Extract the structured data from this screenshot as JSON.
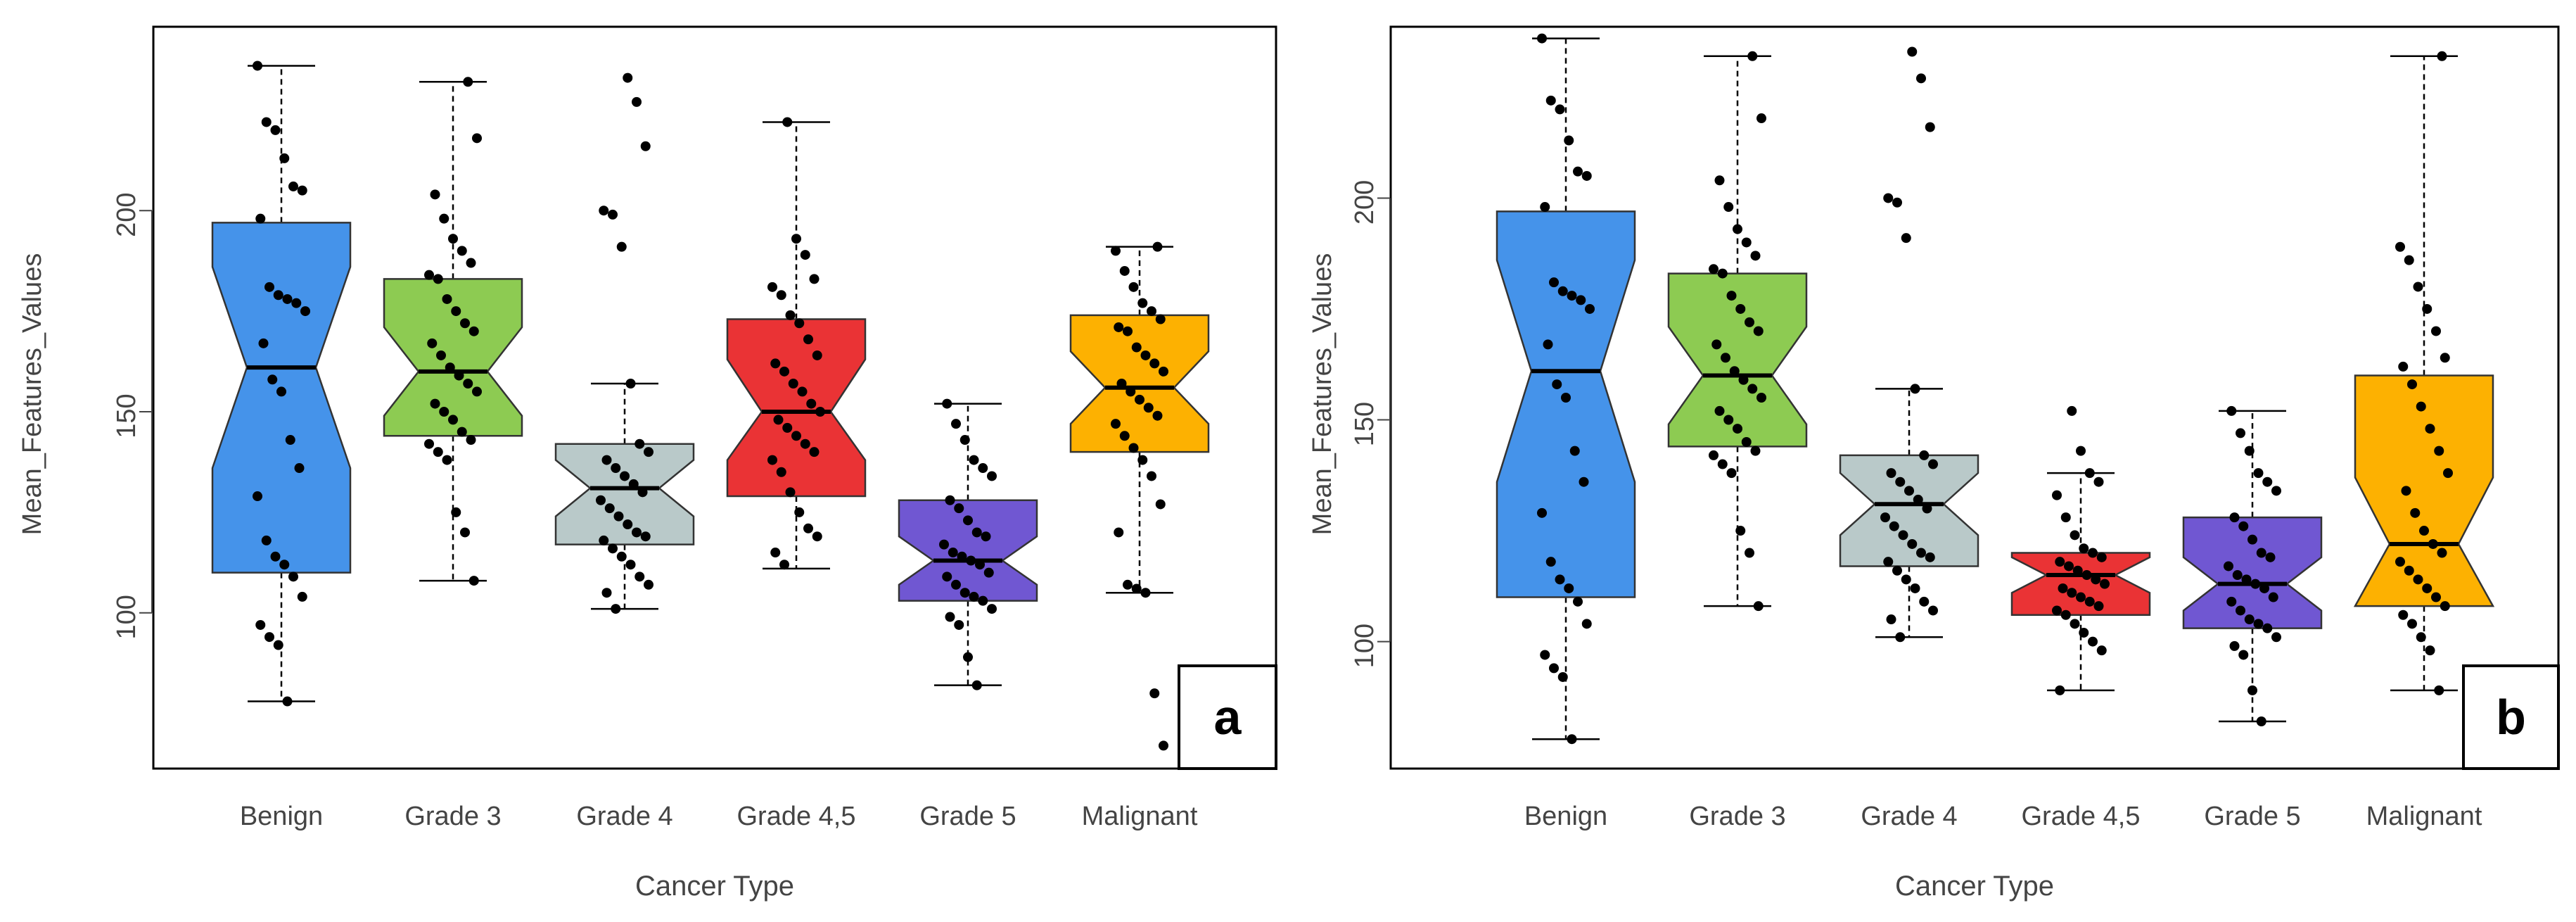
{
  "chart_data": [
    {
      "type": "boxplot",
      "panel_label": "a",
      "xlabel": "Cancer Type",
      "ylabel": "Mean_Features_Values",
      "ylim": [
        62,
        245
      ],
      "yticks": [
        100,
        150,
        200
      ],
      "categories": [
        {
          "name": "Benign",
          "color": "#4593ea",
          "stats": {
            "whisker_low": 78,
            "q1": 110,
            "median": 161,
            "q3": 197,
            "whisker_high": 236,
            "notch_low": 136,
            "notch_high": 186
          },
          "points": [
            236,
            222,
            220,
            213,
            206,
            205,
            198,
            181,
            179,
            178,
            177,
            175,
            167,
            158,
            155,
            143,
            136,
            129,
            118,
            114,
            112,
            109,
            104,
            97,
            94,
            92,
            78
          ]
        },
        {
          "name": "Grade 3",
          "color": "#8dcb52",
          "stats": {
            "whisker_low": 108,
            "q1": 144,
            "median": 160,
            "q3": 183,
            "whisker_high": 232,
            "notch_low": 149,
            "notch_high": 171
          },
          "points": [
            232,
            218,
            204,
            198,
            193,
            190,
            187,
            184,
            183,
            178,
            175,
            172,
            170,
            167,
            164,
            161,
            159,
            157,
            155,
            152,
            150,
            148,
            145,
            143,
            142,
            140,
            138,
            125,
            120,
            108
          ]
        },
        {
          "name": "Grade 4",
          "color": "#b9c9c9",
          "stats": {
            "whisker_low": 101,
            "q1": 117,
            "median": 131,
            "q3": 142,
            "whisker_high": 157,
            "notch_low": 124,
            "notch_high": 138
          },
          "points": [
            233,
            227,
            216,
            200,
            199,
            191,
            157,
            142,
            140,
            138,
            136,
            134,
            132,
            130,
            128,
            126,
            124,
            122,
            120,
            119,
            118,
            116,
            114,
            112,
            109,
            107,
            105,
            101
          ]
        },
        {
          "name": "Grade 4,5",
          "color": "#ea3335",
          "stats": {
            "whisker_low": 111,
            "q1": 129,
            "median": 150,
            "q3": 173,
            "whisker_high": 222,
            "notch_low": 138,
            "notch_high": 163
          },
          "points": [
            222,
            193,
            189,
            183,
            181,
            179,
            174,
            172,
            168,
            164,
            162,
            160,
            157,
            155,
            152,
            150,
            148,
            146,
            144,
            142,
            140,
            138,
            135,
            130,
            125,
            121,
            119,
            115,
            112
          ]
        },
        {
          "name": "Grade 5",
          "color": "#7057d2",
          "stats": {
            "whisker_low": 82,
            "q1": 103,
            "median": 113,
            "q3": 128,
            "whisker_high": 152,
            "notch_low": 107,
            "notch_high": 119
          },
          "points": [
            152,
            147,
            143,
            138,
            136,
            134,
            128,
            126,
            123,
            120,
            119,
            117,
            115,
            114,
            113,
            112,
            110,
            109,
            107,
            105,
            104,
            103,
            101,
            99,
            97,
            89,
            82
          ]
        },
        {
          "name": "Malignant",
          "color": "#fdb101",
          "stats": {
            "whisker_low": 105,
            "q1": 140,
            "median": 156,
            "q3": 174,
            "whisker_high": 191,
            "notch_low": 147,
            "notch_high": 165
          },
          "points": [
            191,
            190,
            185,
            181,
            177,
            175,
            173,
            171,
            170,
            166,
            164,
            162,
            160,
            157,
            155,
            153,
            151,
            149,
            147,
            144,
            141,
            138,
            134,
            127,
            120,
            107,
            106,
            105,
            80,
            67
          ]
        }
      ]
    },
    {
      "type": "boxplot",
      "panel_label": "b",
      "xlabel": "Cancer Type",
      "ylabel": "Mean_Features_Values",
      "ylim": [
        72,
        238
      ],
      "yticks": [
        100,
        150,
        200
      ],
      "categories": [
        {
          "name": "Benign",
          "color": "#4593ea",
          "stats": {
            "whisker_low": 78,
            "q1": 110,
            "median": 161,
            "q3": 197,
            "whisker_high": 236,
            "notch_low": 136,
            "notch_high": 186
          },
          "points": [
            236,
            222,
            220,
            213,
            206,
            205,
            198,
            181,
            179,
            178,
            177,
            175,
            167,
            158,
            155,
            143,
            136,
            129,
            118,
            114,
            112,
            109,
            104,
            97,
            94,
            92,
            78
          ]
        },
        {
          "name": "Grade 3",
          "color": "#8dcb52",
          "stats": {
            "whisker_low": 108,
            "q1": 144,
            "median": 160,
            "q3": 183,
            "whisker_high": 232,
            "notch_low": 149,
            "notch_high": 171
          },
          "points": [
            232,
            218,
            204,
            198,
            193,
            190,
            187,
            184,
            183,
            178,
            175,
            172,
            170,
            167,
            164,
            161,
            159,
            157,
            155,
            152,
            150,
            148,
            145,
            143,
            142,
            140,
            138,
            125,
            120,
            108
          ]
        },
        {
          "name": "Grade 4",
          "color": "#b9c9c9",
          "stats": {
            "whisker_low": 101,
            "q1": 117,
            "median": 131,
            "q3": 142,
            "whisker_high": 157,
            "notch_low": 124,
            "notch_high": 138
          },
          "points": [
            233,
            227,
            216,
            200,
            199,
            191,
            157,
            142,
            140,
            138,
            136,
            134,
            132,
            130,
            128,
            126,
            124,
            122,
            120,
            119,
            118,
            116,
            114,
            112,
            109,
            107,
            105,
            101
          ]
        },
        {
          "name": "Grade 4,5",
          "color": "#ea3335",
          "stats": {
            "whisker_low": 89,
            "q1": 106,
            "median": 115,
            "q3": 120,
            "whisker_high": 138,
            "notch_low": 111,
            "notch_high": 119
          },
          "points": [
            152,
            143,
            138,
            136,
            133,
            128,
            124,
            121,
            120,
            119,
            118,
            117,
            116,
            115,
            114,
            113,
            112,
            111,
            110,
            109,
            108,
            107,
            106,
            104,
            102,
            100,
            98,
            89
          ]
        },
        {
          "name": "Grade 5",
          "color": "#7057d2",
          "stats": {
            "whisker_low": 82,
            "q1": 103,
            "median": 113,
            "q3": 128,
            "whisker_high": 152,
            "notch_low": 107,
            "notch_high": 119
          },
          "points": [
            152,
            147,
            143,
            138,
            136,
            134,
            128,
            126,
            123,
            120,
            119,
            117,
            115,
            114,
            113,
            112,
            110,
            109,
            107,
            105,
            104,
            103,
            101,
            99,
            97,
            89,
            82
          ]
        },
        {
          "name": "Malignant",
          "color": "#fdb101",
          "stats": {
            "whisker_low": 89,
            "q1": 108,
            "median": 122,
            "q3": 160,
            "whisker_high": 232,
            "notch_low": 108,
            "notch_high": 137
          },
          "points": [
            232,
            189,
            186,
            180,
            175,
            170,
            164,
            162,
            158,
            153,
            148,
            143,
            138,
            134,
            129,
            125,
            122,
            120,
            118,
            116,
            114,
            112,
            110,
            108,
            106,
            104,
            101,
            98,
            89
          ]
        }
      ]
    }
  ]
}
